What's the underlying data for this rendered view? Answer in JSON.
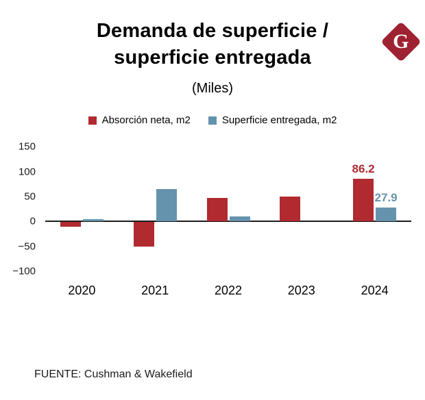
{
  "logo": {
    "letter": "G",
    "color": "#9e2232"
  },
  "title": "Demanda de superficie / superficie entregada",
  "subtitle": "(Miles)",
  "legend": {
    "items": [
      {
        "label": "Absorción neta, m2",
        "color": "#b02a30"
      },
      {
        "label": "Superficie entregada, m2",
        "color": "#6593ad"
      }
    ]
  },
  "chart_data": {
    "type": "bar",
    "categories": [
      "2020",
      "2021",
      "2022",
      "2023",
      "2024"
    ],
    "series": [
      {
        "name": "Absorción neta, m2",
        "color": "#b02a30",
        "values": [
          -10,
          -50,
          48,
          50,
          86.2
        ]
      },
      {
        "name": "Superficie entregada, m2",
        "color": "#6593ad",
        "values": [
          5,
          65,
          10,
          0,
          27.9
        ]
      }
    ],
    "annotations": [
      {
        "series": 0,
        "category_index": 4,
        "text": "86.2",
        "color": "#b02a30"
      },
      {
        "series": 1,
        "category_index": 4,
        "text": "27.9",
        "color": "#6593ad"
      }
    ],
    "title": "Demanda de superficie / superficie entregada",
    "subtitle": "(Miles)",
    "xlabel": "",
    "ylabel": "",
    "ylim": [
      -100,
      150
    ],
    "yticks": [
      150,
      100,
      50,
      0,
      -50,
      -100
    ],
    "grid": false,
    "legend_position": "top"
  },
  "footer": "FUENTE: Cushman & Wakefield"
}
